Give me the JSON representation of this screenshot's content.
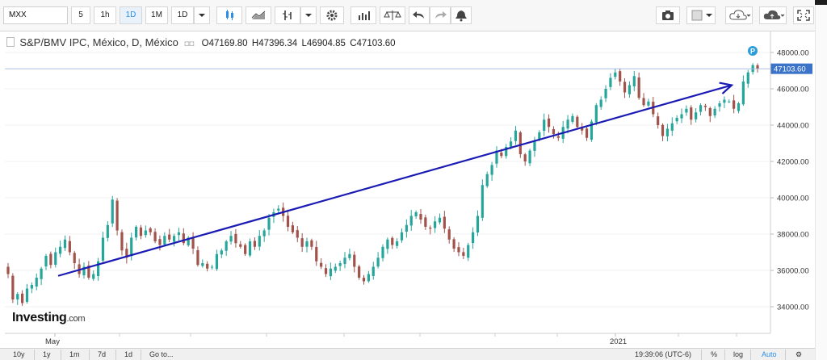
{
  "toolbar": {
    "symbol": "MXX",
    "intervals": [
      "5",
      "1h",
      "1D",
      "1M"
    ],
    "interval_select": "1D"
  },
  "legend": {
    "title": "S&P/BMV IPC, México, D, México",
    "open": "O47169.80",
    "high": "H47396.34",
    "low": "L46904.85",
    "close": "C47103.60"
  },
  "branding": {
    "logo_main": "Investing",
    "logo_suffix": ".com"
  },
  "bottom": {
    "ranges": [
      "10y",
      "1y",
      "1m",
      "7d",
      "1d"
    ],
    "goto": "Go to...",
    "clock": "19:39:06 (UTC-6)",
    "toggles": [
      "%",
      "log",
      "Auto"
    ]
  },
  "colors": {
    "up": "#26a69a",
    "down": "#a0524b",
    "trendline": "#1a1ab4",
    "last_price": "#3a73c8",
    "marker": "#2d9cdb"
  },
  "chart_data": {
    "type": "candlestick",
    "title": "S&P/BMV IPC, México, D, México",
    "ylim": [
      33000,
      49000
    ],
    "y_ticks": [
      "34000.00",
      "36000.00",
      "38000.00",
      "40000.00",
      "42000.00",
      "44000.00",
      "46000.00",
      "48000.00"
    ],
    "x_tick_labels": [
      "May",
      "2021"
    ],
    "last_price": "47103.60",
    "marker_label": "P",
    "trendline": {
      "from": [
        36,
        35700
      ],
      "to": [
        204,
        46200
      ]
    },
    "close_path": [
      35800,
      34400,
      34700,
      34200,
      35000,
      35200,
      35600,
      36100,
      36800,
      36300,
      37000,
      37300,
      37700,
      37000,
      36400,
      35800,
      36200,
      35600,
      35800,
      36500,
      37800,
      38500,
      39900,
      38200,
      37100,
      36700,
      37800,
      38400,
      37900,
      38200,
      38100,
      37600,
      37400,
      37900,
      37700,
      37900,
      38100,
      37500,
      37800,
      37200,
      36300,
      36400,
      36100,
      36200,
      36900,
      37100,
      37600,
      37900,
      37500,
      37300,
      36900,
      37600,
      37300,
      37900,
      38200,
      38900,
      39200,
      39400,
      39000,
      38400,
      38100,
      37800,
      37300,
      37600,
      37300,
      36500,
      36200,
      35800,
      36100,
      36200,
      36400,
      36700,
      36900,
      36200,
      35600,
      35400,
      35800,
      36200,
      36700,
      37300,
      37700,
      37400,
      37600,
      38100,
      38500,
      39000,
      39200,
      38800,
      38400,
      38300,
      38700,
      38900,
      38300,
      37700,
      37200,
      37000,
      36800,
      37400,
      38100,
      39000,
      40700,
      41300,
      41800,
      42600,
      42300,
      42800,
      43100,
      43700,
      42400,
      42000,
      42600,
      43100,
      43600,
      44300,
      43900,
      43500,
      43300,
      43900,
      44300,
      44500,
      43900,
      43700,
      43300,
      44200,
      45100,
      45400,
      46000,
      46600,
      46900,
      46400,
      45800,
      46200,
      46700,
      45500,
      45100,
      45300,
      44600,
      44000,
      43400,
      43800,
      44100,
      44400,
      44600,
      44900,
      44300,
      44700,
      45100,
      45000,
      44500,
      44900,
      45200,
      45400,
      45300,
      44900,
      45200,
      46400,
      46900,
      47300,
      47103.6
    ]
  }
}
